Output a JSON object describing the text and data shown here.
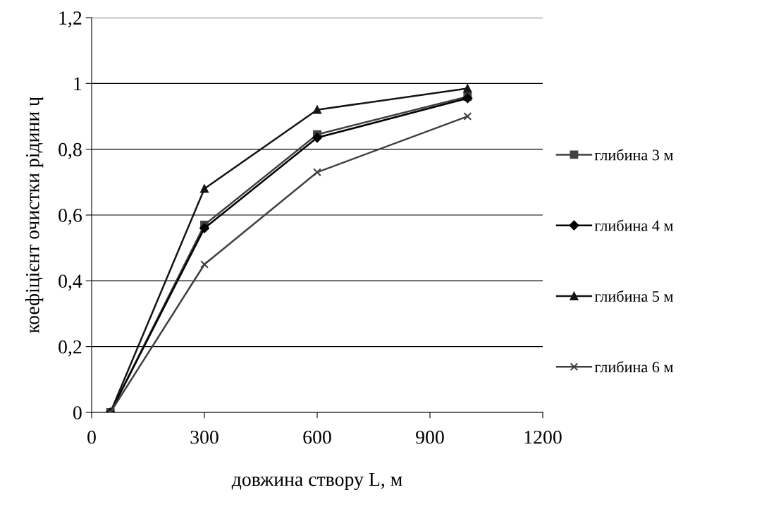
{
  "chart_data": {
    "type": "line",
    "xlabel": "довжина створу L, м",
    "ylabel": "коефіцієнт очистки рідини ɥ",
    "x": [
      50,
      300,
      600,
      1000
    ],
    "series": [
      {
        "name": "глибина 3 м",
        "color": "#404040",
        "marker": "square",
        "values": [
          0,
          0.57,
          0.845,
          0.96
        ]
      },
      {
        "name": "глибина 4 м",
        "color": "#000000",
        "marker": "diamond",
        "values": [
          0,
          0.56,
          0.835,
          0.955
        ]
      },
      {
        "name": "глибина 5 м",
        "color": "#141414",
        "marker": "triangle",
        "values": [
          0,
          0.68,
          0.92,
          0.985
        ]
      },
      {
        "name": "глибина 6 м",
        "color": "#404040",
        "marker": "cross",
        "values": [
          0,
          0.45,
          0.73,
          0.9
        ]
      }
    ],
    "xlim": [
      0,
      1200
    ],
    "xticks": [
      0,
      300,
      600,
      900,
      1200
    ],
    "ylim": [
      0,
      1.2
    ],
    "yticks": [
      {
        "value": 0,
        "label": "0"
      },
      {
        "value": 0.2,
        "label": "0,2"
      },
      {
        "value": 0.4,
        "label": "0,4"
      },
      {
        "value": 0.6,
        "label": "0,6"
      },
      {
        "value": 0.8,
        "label": "0,8"
      },
      {
        "value": 1,
        "label": "1"
      },
      {
        "value": 1.2,
        "label": "1,2"
      }
    ],
    "grid": "y",
    "legend": "right",
    "line_style": "solid"
  }
}
